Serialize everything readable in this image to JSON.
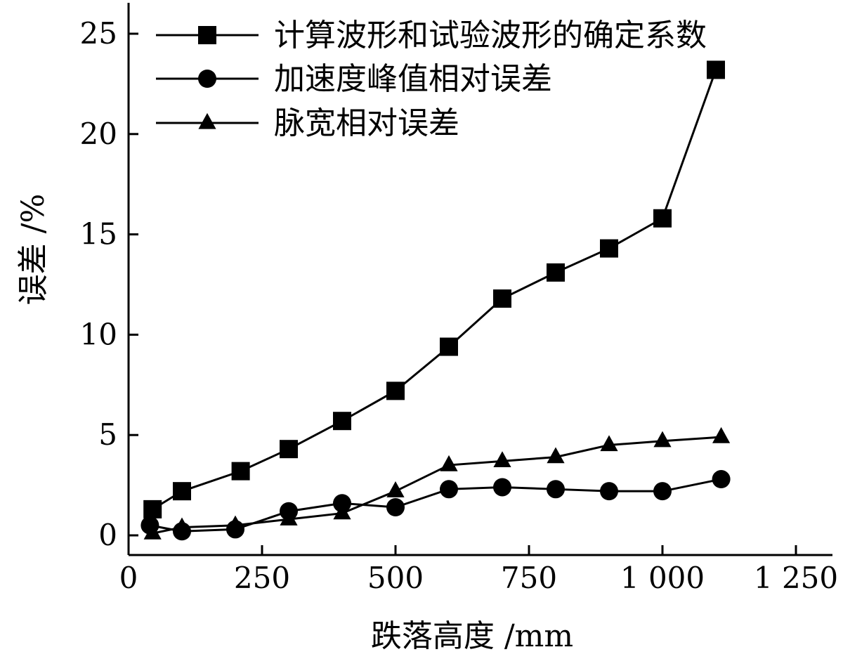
{
  "chart_data": {
    "type": "line",
    "xlabel": "跌落高度 /mm",
    "ylabel": "误差 /%",
    "xlim": [
      0,
      1250
    ],
    "ylim": [
      0,
      25
    ],
    "x_ticks": [
      0,
      250,
      500,
      750,
      1000,
      1250
    ],
    "x_tick_labels": [
      "0",
      "250",
      "500",
      "750",
      "1 000",
      "1 250"
    ],
    "y_ticks": [
      0,
      5,
      10,
      15,
      20,
      25
    ],
    "y_tick_labels": [
      "0",
      "5",
      "10",
      "15",
      "20",
      "25"
    ],
    "grid": false,
    "legend_position": "top-left",
    "series": [
      {
        "name": "计算波形和试验波形的确定系数",
        "marker": "square",
        "x": [
          45,
          100,
          210,
          300,
          400,
          500,
          600,
          700,
          800,
          900,
          1000,
          1100
        ],
        "y": [
          1.3,
          2.2,
          3.2,
          4.3,
          5.7,
          7.2,
          9.4,
          11.8,
          13.1,
          14.3,
          15.8,
          23.2
        ]
      },
      {
        "name": "加速度峰值相对误差",
        "marker": "circle",
        "x": [
          40,
          100,
          200,
          300,
          400,
          500,
          600,
          700,
          800,
          900,
          1000,
          1110
        ],
        "y": [
          0.5,
          0.2,
          0.3,
          1.2,
          1.6,
          1.4,
          2.3,
          2.4,
          2.3,
          2.2,
          2.2,
          2.8
        ]
      },
      {
        "name": "脉宽相对误差",
        "marker": "triangle",
        "x": [
          45,
          100,
          200,
          300,
          400,
          500,
          600,
          700,
          800,
          900,
          1000,
          1110
        ],
        "y": [
          0.1,
          0.4,
          0.5,
          0.8,
          1.1,
          2.2,
          3.5,
          3.7,
          3.9,
          4.5,
          4.7,
          4.9
        ]
      }
    ]
  }
}
